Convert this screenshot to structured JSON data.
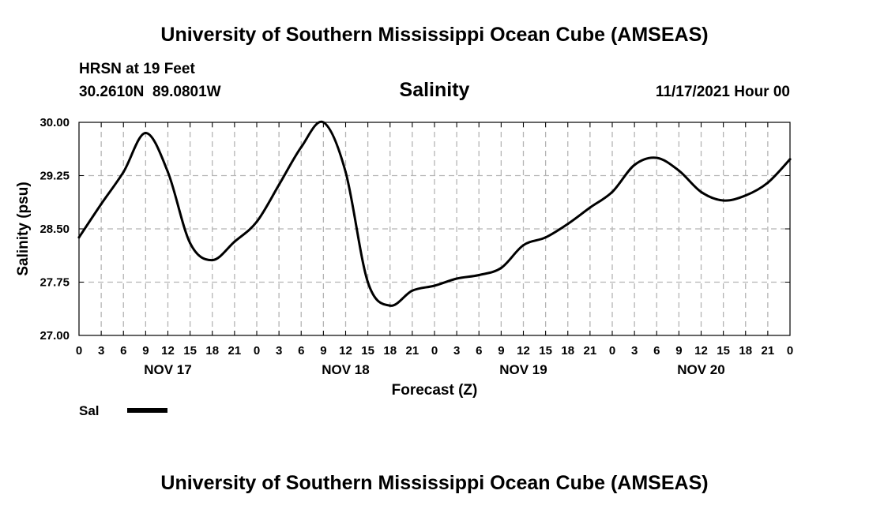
{
  "header": {
    "main_title": "University of Southern Mississippi Ocean Cube (AMSEAS)",
    "station": "HRSN at 19 Feet",
    "coordinates": "30.2610N  89.0801W",
    "chart_title": "Salinity",
    "datetime": "11/17/2021 Hour 00"
  },
  "footer": {
    "main_title": "University of Southern Mississippi Ocean Cube (AMSEAS)"
  },
  "legend": {
    "label": "Sal"
  },
  "chart_data": {
    "type": "line",
    "title": "Salinity",
    "xlabel": "Forecast (Z)",
    "ylabel": "Salinity (psu)",
    "ylim": [
      27.0,
      30.0
    ],
    "xlim": [
      0,
      96
    ],
    "yticks": [
      "27.00",
      "27.75",
      "28.50",
      "29.25",
      "30.00"
    ],
    "xtick_labels": [
      "0",
      "3",
      "6",
      "9",
      "12",
      "15",
      "18",
      "21",
      "0",
      "3",
      "6",
      "9",
      "12",
      "15",
      "18",
      "21",
      "0",
      "3",
      "6",
      "9",
      "12",
      "15",
      "18",
      "21",
      "0",
      "3",
      "6",
      "9",
      "12",
      "15",
      "18",
      "21",
      "0"
    ],
    "day_labels": [
      "NOV 17",
      "NOV 18",
      "NOV 19",
      "NOV 20"
    ],
    "grid": true,
    "legend_position": "bottom-left",
    "series": [
      {
        "name": "Sal",
        "x": [
          0,
          3,
          6,
          9,
          12,
          15,
          18,
          21,
          24,
          27,
          30,
          33,
          36,
          39,
          42,
          45,
          48,
          51,
          54,
          57,
          60,
          63,
          66,
          69,
          72,
          75,
          78,
          81,
          84,
          87,
          90,
          93,
          96
        ],
        "values": [
          28.38,
          28.85,
          29.3,
          29.85,
          29.3,
          28.3,
          28.06,
          28.32,
          28.6,
          29.12,
          29.65,
          30.0,
          29.3,
          27.75,
          27.42,
          27.63,
          27.7,
          27.8,
          27.85,
          27.95,
          28.27,
          28.38,
          28.57,
          28.8,
          29.02,
          29.4,
          29.5,
          29.32,
          29.02,
          28.9,
          28.97,
          29.15,
          29.48
        ]
      }
    ]
  }
}
